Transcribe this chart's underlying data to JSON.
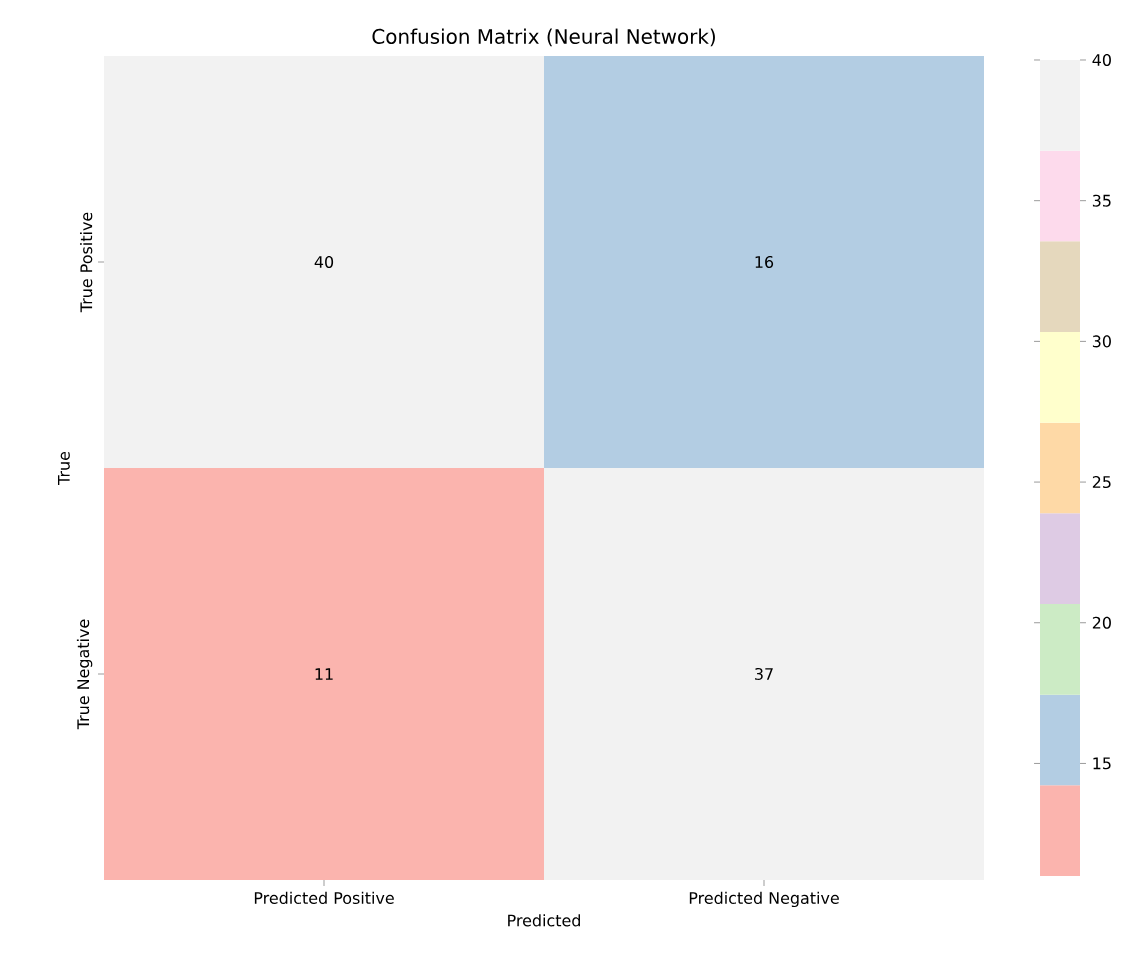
{
  "chart_data": {
    "type": "heatmap",
    "title": "Confusion Matrix (Neural Network)",
    "xlabel": "Predicted",
    "ylabel": "True",
    "categories": [
      "Predicted Positive",
      "Predicted Negative"
    ],
    "y_categories": [
      "True Positive",
      "True Negative"
    ],
    "cells": [
      [
        40,
        16
      ],
      [
        11,
        37
      ]
    ],
    "data_labels": true,
    "clim": [
      11,
      40
    ],
    "cticks": [
      15,
      20,
      25,
      30,
      35,
      40
    ]
  }
}
